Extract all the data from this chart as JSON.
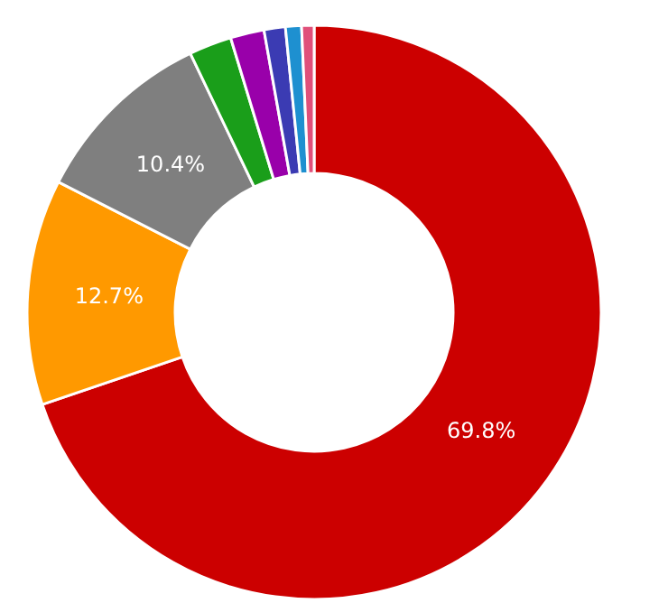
{
  "chart_data": {
    "type": "donut",
    "categories": [
      null,
      null,
      null,
      null,
      null,
      null,
      null,
      null
    ],
    "values": [
      69.8,
      12.7,
      10.4,
      2.4,
      1.9,
      1.2,
      0.9,
      0.7
    ],
    "colors": [
      "#cc0000",
      "#ff9900",
      "#7f7f7f",
      "#1a9e1a",
      "#9900aa",
      "#3b3bb3",
      "#1e90d0",
      "#e0507a"
    ],
    "value_labels": [
      "69.8%",
      "12.7%",
      "10.4%",
      null,
      null,
      null,
      null,
      null
    ]
  }
}
